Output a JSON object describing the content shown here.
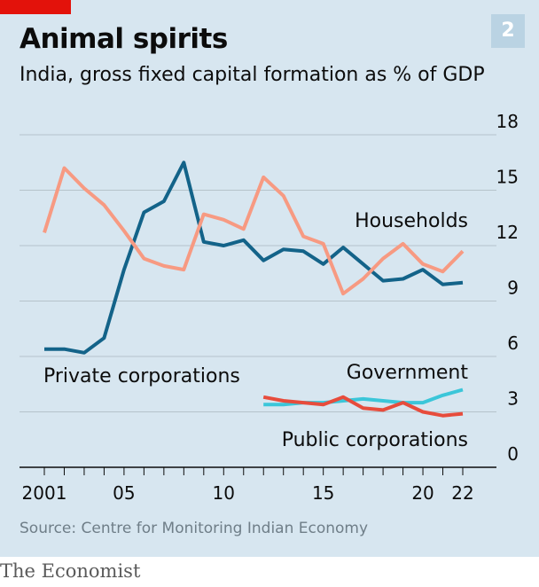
{
  "header": {
    "title": "Animal spirits",
    "subtitle": "India, gross fixed capital formation as % of GDP",
    "chart_number": "2"
  },
  "footer": {
    "source": "Source: Centre for Monitoring Indian Economy",
    "brand": "The Economist"
  },
  "colors": {
    "background": "#d7e6f0",
    "private_corporations": "#136389",
    "households": "#f79a82",
    "government": "#3bc6d9",
    "public_corporations": "#e74c3c",
    "brand_red": "#e3120b"
  },
  "chart_data": {
    "type": "line",
    "title": "Animal spirits",
    "subtitle": "India, gross fixed capital formation as % of GDP",
    "xlabel": "",
    "ylabel": "",
    "xlim": [
      2001,
      2022
    ],
    "ylim": [
      0,
      18
    ],
    "x_ticks": [
      2001,
      2002,
      2003,
      2004,
      2005,
      2006,
      2007,
      2008,
      2009,
      2010,
      2011,
      2012,
      2013,
      2014,
      2015,
      2016,
      2017,
      2018,
      2019,
      2020,
      2021,
      2022
    ],
    "x_tick_labels": [
      {
        "x": 2001,
        "label": "2001"
      },
      {
        "x": 2005,
        "label": "05"
      },
      {
        "x": 2010,
        "label": "10"
      },
      {
        "x": 2015,
        "label": "15"
      },
      {
        "x": 2020,
        "label": "20"
      },
      {
        "x": 2022,
        "label": "22"
      }
    ],
    "y_ticks": [
      0,
      3,
      6,
      9,
      12,
      15,
      18
    ],
    "grid": true,
    "y_axis_side": "right",
    "series": [
      {
        "name": "Private corporations",
        "color": "#136389",
        "x": [
          2001,
          2002,
          2003,
          2004,
          2005,
          2006,
          2007,
          2008,
          2009,
          2010,
          2011,
          2012,
          2013,
          2014,
          2015,
          2016,
          2017,
          2018,
          2019,
          2020,
          2021,
          2022
        ],
        "values": [
          6.4,
          6.4,
          6.2,
          7.0,
          10.7,
          13.8,
          14.4,
          16.5,
          12.2,
          12.0,
          12.3,
          11.2,
          11.8,
          11.7,
          11.0,
          11.9,
          11.0,
          10.1,
          10.2,
          10.7,
          9.9,
          10.0
        ]
      },
      {
        "name": "Households",
        "color": "#f79a82",
        "x": [
          2001,
          2002,
          2003,
          2004,
          2005,
          2006,
          2007,
          2008,
          2009,
          2010,
          2011,
          2012,
          2013,
          2014,
          2015,
          2016,
          2017,
          2018,
          2019,
          2020,
          2021,
          2022
        ],
        "values": [
          12.7,
          16.2,
          15.1,
          14.2,
          12.8,
          11.3,
          10.9,
          10.7,
          13.7,
          13.4,
          12.9,
          15.7,
          14.7,
          12.5,
          12.1,
          9.4,
          10.2,
          11.3,
          12.1,
          11.0,
          10.6,
          11.7
        ]
      },
      {
        "name": "Government",
        "color": "#3bc6d9",
        "x": [
          2012,
          2013,
          2014,
          2015,
          2016,
          2017,
          2018,
          2019,
          2020,
          2021,
          2022
        ],
        "values": [
          3.4,
          3.4,
          3.5,
          3.5,
          3.6,
          3.7,
          3.6,
          3.5,
          3.5,
          3.9,
          4.2
        ]
      },
      {
        "name": "Public corporations",
        "color": "#e74c3c",
        "x": [
          2012,
          2013,
          2014,
          2015,
          2016,
          2017,
          2018,
          2019,
          2020,
          2021,
          2022
        ],
        "values": [
          3.8,
          3.6,
          3.5,
          3.4,
          3.8,
          3.2,
          3.1,
          3.5,
          3.0,
          2.8,
          2.9
        ]
      }
    ]
  }
}
